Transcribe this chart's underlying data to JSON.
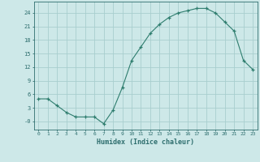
{
  "x": [
    0,
    1,
    2,
    3,
    4,
    5,
    6,
    7,
    8,
    9,
    10,
    11,
    12,
    13,
    14,
    15,
    16,
    17,
    18,
    19,
    20,
    21,
    22,
    23
  ],
  "y": [
    5,
    5,
    3.5,
    2,
    1,
    1,
    1,
    -0.5,
    2.5,
    7.5,
    13.5,
    16.5,
    19.5,
    21.5,
    23,
    24,
    24.5,
    25,
    25,
    24,
    22,
    20,
    13.5,
    11.5
  ],
  "line_color": "#2e7d6e",
  "marker": "+",
  "bg_color": "#cde8e8",
  "grid_color": "#a8cece",
  "xlabel": "Humidex (Indice chaleur)",
  "yticks": [
    0,
    3,
    6,
    9,
    12,
    15,
    18,
    21,
    24
  ],
  "ytick_labels": [
    "-0",
    "3",
    "6",
    "9",
    "12",
    "15",
    "18",
    "21",
    "24"
  ],
  "ylim": [
    -1.8,
    26.5
  ],
  "xlim": [
    -0.5,
    23.5
  ],
  "xticks": [
    0,
    1,
    2,
    3,
    4,
    5,
    6,
    7,
    8,
    9,
    10,
    11,
    12,
    13,
    14,
    15,
    16,
    17,
    18,
    19,
    20,
    21,
    22,
    23
  ],
  "font_color": "#2e6e6e",
  "axis_color": "#2e6e6e"
}
